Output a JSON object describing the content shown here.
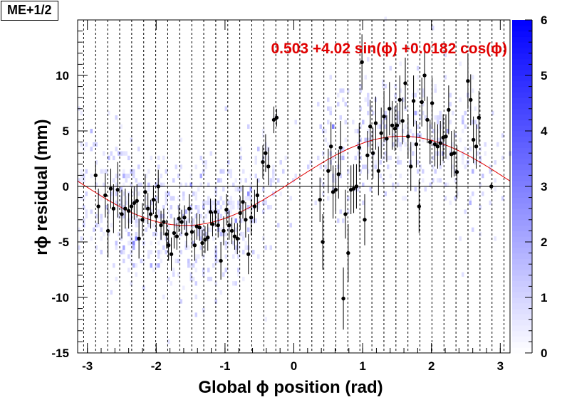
{
  "title": "ME+1/2",
  "chart_data": {
    "type": "scatter",
    "xlabel": "Global ϕ position (rad)",
    "ylabel": "rϕ residual (mm)",
    "xlim": [
      -3.14159,
      3.14159
    ],
    "ylim": [
      -15,
      15
    ],
    "x_ticks": [
      -3,
      -2,
      -1,
      0,
      1,
      2,
      3
    ],
    "y_ticks": [
      -15,
      -10,
      -5,
      0,
      5,
      10
    ],
    "grid": "dashed vertical lines at chamber boundaries",
    "fit": {
      "label": "0.503 +4.02 sin(ϕ) +0.0182 cos(ϕ)",
      "constant": 0.503,
      "sin_coef": 4.02,
      "cos_coef": 0.0182,
      "color": "#e00000"
    },
    "colorbar": {
      "min": 0,
      "max": 6,
      "ticks": [
        0,
        1,
        2,
        3,
        4,
        5,
        6
      ]
    },
    "colors": {
      "points": "#000000",
      "fit": "#e00000",
      "heat_max": "#0000ff"
    },
    "profile_points": [
      {
        "x": -2.88,
        "y": 1.0,
        "err": 1.3
      },
      {
        "x": -2.84,
        "y": -1.8,
        "err": 1.6
      },
      {
        "x": -2.74,
        "y": -0.8,
        "err": 2.0
      },
      {
        "x": -2.7,
        "y": -4.0,
        "err": 2.4
      },
      {
        "x": -2.66,
        "y": -0.2,
        "err": 1.8
      },
      {
        "x": -2.62,
        "y": -2.0,
        "err": 2.2
      },
      {
        "x": -2.56,
        "y": -0.3,
        "err": 2.5
      },
      {
        "x": -2.5,
        "y": -2.5,
        "err": 2.2
      },
      {
        "x": -2.45,
        "y": -2.0,
        "err": 1.8
      },
      {
        "x": -2.4,
        "y": -2.2,
        "err": 1.6
      },
      {
        "x": -2.36,
        "y": -1.8,
        "err": 1.6
      },
      {
        "x": -2.32,
        "y": -1.5,
        "err": 1.5
      },
      {
        "x": -2.28,
        "y": -1.3,
        "err": 1.5
      },
      {
        "x": -2.25,
        "y": -4.7,
        "err": 1.8
      },
      {
        "x": -2.2,
        "y": -3.0,
        "err": 1.5
      },
      {
        "x": -2.16,
        "y": -0.5,
        "err": 1.6
      },
      {
        "x": -2.12,
        "y": -2.0,
        "err": 1.4
      },
      {
        "x": -2.08,
        "y": -2.5,
        "err": 1.3
      },
      {
        "x": -2.04,
        "y": -1.2,
        "err": 1.3
      },
      {
        "x": -2.0,
        "y": -2.7,
        "err": 1.4
      },
      {
        "x": -1.97,
        "y": 0.0,
        "err": 1.5
      },
      {
        "x": -1.93,
        "y": -3.5,
        "err": 1.3
      },
      {
        "x": -1.89,
        "y": -3.2,
        "err": 1.2
      },
      {
        "x": -1.85,
        "y": -4.3,
        "err": 1.3
      },
      {
        "x": -1.82,
        "y": -5.3,
        "err": 1.4
      },
      {
        "x": -1.78,
        "y": -6.1,
        "err": 1.5
      },
      {
        "x": -1.74,
        "y": -4.2,
        "err": 1.4
      },
      {
        "x": -1.7,
        "y": -4.5,
        "err": 1.2
      },
      {
        "x": -1.67,
        "y": -2.9,
        "err": 1.2
      },
      {
        "x": -1.63,
        "y": -3.2,
        "err": 1.1
      },
      {
        "x": -1.59,
        "y": -2.8,
        "err": 1.1
      },
      {
        "x": -1.56,
        "y": -4.3,
        "err": 1.2
      },
      {
        "x": -1.52,
        "y": -2.0,
        "err": 1.3
      },
      {
        "x": -1.48,
        "y": -4.1,
        "err": 1.3
      },
      {
        "x": -1.44,
        "y": -5.3,
        "err": 1.4
      },
      {
        "x": -1.41,
        "y": -3.6,
        "err": 1.2
      },
      {
        "x": -1.37,
        "y": -3.7,
        "err": 1.2
      },
      {
        "x": -1.33,
        "y": -5.1,
        "err": 1.2
      },
      {
        "x": -1.29,
        "y": -4.8,
        "err": 1.2
      },
      {
        "x": -1.25,
        "y": -4.6,
        "err": 1.2
      },
      {
        "x": -1.21,
        "y": -2.3,
        "err": 1.2
      },
      {
        "x": -1.18,
        "y": -3.4,
        "err": 1.1
      },
      {
        "x": -1.14,
        "y": -2.3,
        "err": 1.2
      },
      {
        "x": -1.1,
        "y": -3.5,
        "err": 1.1
      },
      {
        "x": -1.06,
        "y": -6.7,
        "err": 1.7
      },
      {
        "x": -1.02,
        "y": -4.0,
        "err": 1.3
      },
      {
        "x": -0.98,
        "y": -2.1,
        "err": 1.4
      },
      {
        "x": -0.94,
        "y": -3.5,
        "err": 1.3
      },
      {
        "x": -0.9,
        "y": -4.0,
        "err": 1.2
      },
      {
        "x": -0.86,
        "y": -4.5,
        "err": 1.2
      },
      {
        "x": -0.82,
        "y": -4.7,
        "err": 1.4
      },
      {
        "x": -0.78,
        "y": -2.4,
        "err": 1.5
      },
      {
        "x": -0.74,
        "y": -1.4,
        "err": 1.5
      },
      {
        "x": -0.7,
        "y": -3.0,
        "err": 1.6
      },
      {
        "x": -0.66,
        "y": -6.1,
        "err": 1.8
      },
      {
        "x": -0.62,
        "y": -2.8,
        "err": 1.6
      },
      {
        "x": -0.57,
        "y": -1.8,
        "err": 1.5
      },
      {
        "x": -0.53,
        "y": -0.8,
        "err": 1.5
      },
      {
        "x": -0.45,
        "y": 2.2,
        "err": 1.5
      },
      {
        "x": -0.41,
        "y": 3.0,
        "err": 1.7
      },
      {
        "x": -0.37,
        "y": 1.8,
        "err": 1.7
      },
      {
        "x": -0.29,
        "y": 6.0,
        "err": 1.2
      },
      {
        "x": -0.25,
        "y": 6.2,
        "err": 0.8
      },
      {
        "x": 0.38,
        "y": -1.2,
        "err": 2.0
      },
      {
        "x": 0.42,
        "y": -5.0,
        "err": 2.5
      },
      {
        "x": 0.5,
        "y": 1.4,
        "err": 2.0
      },
      {
        "x": 0.54,
        "y": 3.6,
        "err": 2.2
      },
      {
        "x": 0.57,
        "y": -0.5,
        "err": 2.4
      },
      {
        "x": 0.61,
        "y": -0.3,
        "err": 2.0
      },
      {
        "x": 0.65,
        "y": 1.1,
        "err": 2.2
      },
      {
        "x": 0.68,
        "y": 3.5,
        "err": 2.4
      },
      {
        "x": 0.72,
        "y": -10.1,
        "err": 2.8
      },
      {
        "x": 0.75,
        "y": -2.5,
        "err": 2.2
      },
      {
        "x": 0.79,
        "y": -6.0,
        "err": 2.6
      },
      {
        "x": 0.83,
        "y": -0.3,
        "err": 2.2
      },
      {
        "x": 0.87,
        "y": -0.2,
        "err": 2.2
      },
      {
        "x": 0.91,
        "y": 0.0,
        "err": 2.0
      },
      {
        "x": 0.95,
        "y": 3.5,
        "err": 2.2
      },
      {
        "x": 0.99,
        "y": 11.2,
        "err": 2.5
      },
      {
        "x": 1.03,
        "y": -3.0,
        "err": 2.3
      },
      {
        "x": 1.07,
        "y": 2.8,
        "err": 2.2
      },
      {
        "x": 1.11,
        "y": 5.4,
        "err": 2.4
      },
      {
        "x": 1.15,
        "y": 3.0,
        "err": 2.3
      },
      {
        "x": 1.19,
        "y": 5.7,
        "err": 2.4
      },
      {
        "x": 1.23,
        "y": 1.4,
        "err": 2.2
      },
      {
        "x": 1.27,
        "y": 4.8,
        "err": 2.3
      },
      {
        "x": 1.31,
        "y": 6.3,
        "err": 2.3
      },
      {
        "x": 1.35,
        "y": 4.3,
        "err": 2.1
      },
      {
        "x": 1.39,
        "y": 7.0,
        "err": 2.4
      },
      {
        "x": 1.43,
        "y": 5.5,
        "err": 2.2
      },
      {
        "x": 1.47,
        "y": 5.2,
        "err": 2.0
      },
      {
        "x": 1.5,
        "y": 5.5,
        "err": 2.0
      },
      {
        "x": 1.54,
        "y": 7.8,
        "err": 2.2
      },
      {
        "x": 1.58,
        "y": 5.9,
        "err": 2.1
      },
      {
        "x": 1.62,
        "y": 9.3,
        "err": 2.3
      },
      {
        "x": 1.66,
        "y": 4.5,
        "err": 2.0
      },
      {
        "x": 1.7,
        "y": 1.8,
        "err": 2.2
      },
      {
        "x": 1.74,
        "y": 7.7,
        "err": 2.3
      },
      {
        "x": 1.78,
        "y": 3.8,
        "err": 2.1
      },
      {
        "x": 1.82,
        "y": -1.8,
        "err": 2.4
      },
      {
        "x": 1.86,
        "y": 7.6,
        "err": 2.2
      },
      {
        "x": 1.9,
        "y": 10.0,
        "err": 2.3
      },
      {
        "x": 1.94,
        "y": 6.0,
        "err": 2.1
      },
      {
        "x": 1.98,
        "y": 4.0,
        "err": 2.0
      },
      {
        "x": 2.01,
        "y": 7.5,
        "err": 2.3
      },
      {
        "x": 2.05,
        "y": 3.8,
        "err": 2.0
      },
      {
        "x": 2.09,
        "y": 3.6,
        "err": 2.0
      },
      {
        "x": 2.13,
        "y": 3.9,
        "err": 2.0
      },
      {
        "x": 2.17,
        "y": 4.4,
        "err": 2.1
      },
      {
        "x": 2.21,
        "y": 4.5,
        "err": 2.0
      },
      {
        "x": 2.25,
        "y": 6.9,
        "err": 2.2
      },
      {
        "x": 2.29,
        "y": 2.9,
        "err": 2.1
      },
      {
        "x": 2.33,
        "y": 3.0,
        "err": 2.1
      },
      {
        "x": 2.37,
        "y": 1.3,
        "err": 2.4
      },
      {
        "x": 2.53,
        "y": 9.5,
        "err": 2.5
      },
      {
        "x": 2.57,
        "y": 7.8,
        "err": 2.3
      },
      {
        "x": 2.61,
        "y": 4.2,
        "err": 2.1
      },
      {
        "x": 2.65,
        "y": 3.6,
        "err": 2.0
      },
      {
        "x": 2.69,
        "y": 6.2,
        "err": 2.4
      },
      {
        "x": 2.87,
        "y": 0.0,
        "err": 0.3
      }
    ]
  }
}
